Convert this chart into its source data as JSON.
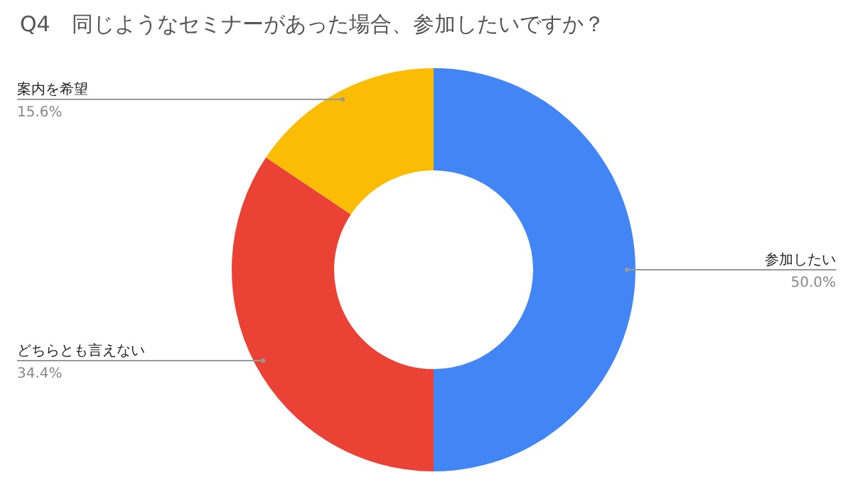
{
  "chart_data": {
    "type": "donut",
    "title": "Q4　同じようなセミナーがあった場合、参加したいですか？",
    "categories": [
      "参加したい",
      "どちらとも言えない",
      "案内を希望"
    ],
    "values": [
      50.0,
      34.4,
      15.6
    ],
    "value_labels": [
      "50.0%",
      "34.4%",
      "15.6%"
    ],
    "colors": [
      "#4285f4",
      "#ea4335",
      "#fbbc04"
    ]
  }
}
